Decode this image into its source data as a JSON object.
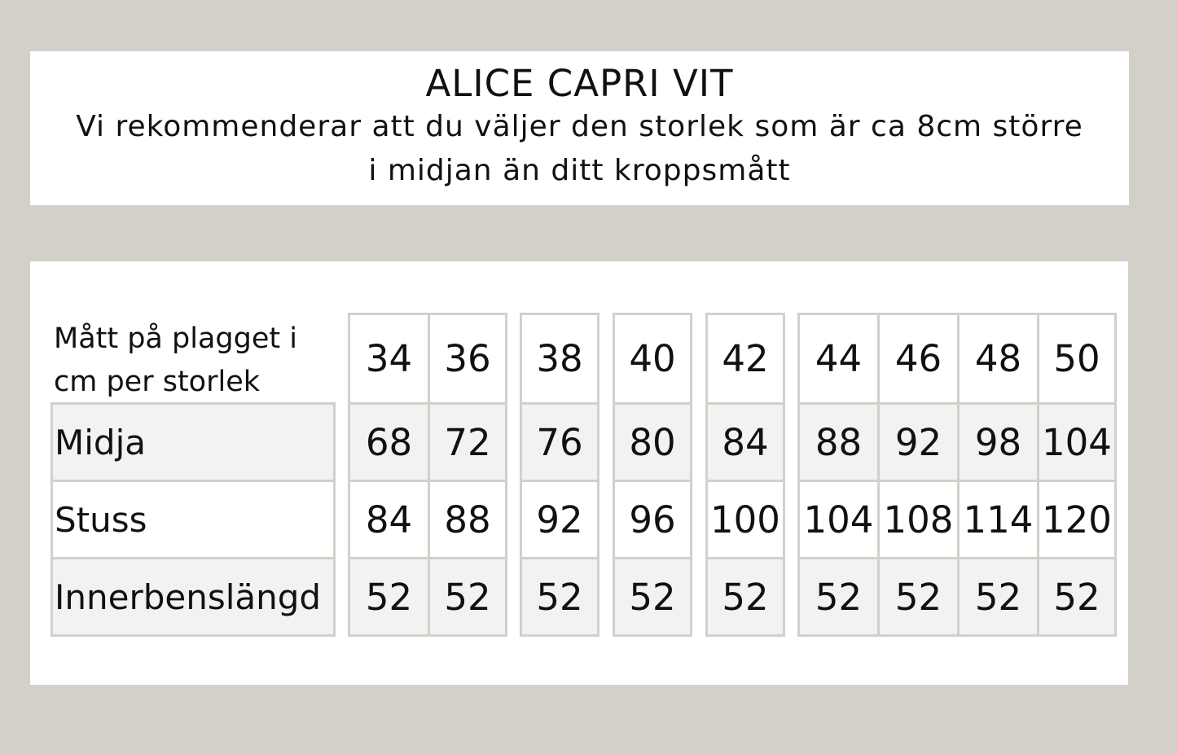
{
  "header": {
    "title": "ALICE CAPRI VIT",
    "subtitle_line1": "Vi rekommenderar att du väljer den storlek som är ca 8cm större",
    "subtitle_line2": "i midjan än ditt kroppsmått"
  },
  "table": {
    "header_label_line1": "Mått på plagget i",
    "header_label_line2": "cm per storlek",
    "size_groups": [
      [
        "34",
        "36"
      ],
      [
        "38"
      ],
      [
        "40"
      ],
      [
        "42"
      ],
      [
        "44",
        "46",
        "48",
        "50"
      ]
    ],
    "sizes": [
      "34",
      "36",
      "38",
      "40",
      "42",
      "44",
      "46",
      "48",
      "50"
    ],
    "rows": [
      {
        "label": "Midja",
        "values": [
          "68",
          "72",
          "76",
          "80",
          "84",
          "88",
          "92",
          "98",
          "104"
        ]
      },
      {
        "label": "Stuss",
        "values": [
          "84",
          "88",
          "92",
          "96",
          "100",
          "104",
          "108",
          "114",
          "120"
        ]
      },
      {
        "label": "Innerbenslängd",
        "values": [
          "52",
          "52",
          "52",
          "52",
          "52",
          "52",
          "52",
          "52",
          "52"
        ]
      }
    ]
  },
  "colors": {
    "background": "#d3d0c9",
    "border": "#d3d0c9",
    "shaded_row": "#f2f2f2"
  }
}
